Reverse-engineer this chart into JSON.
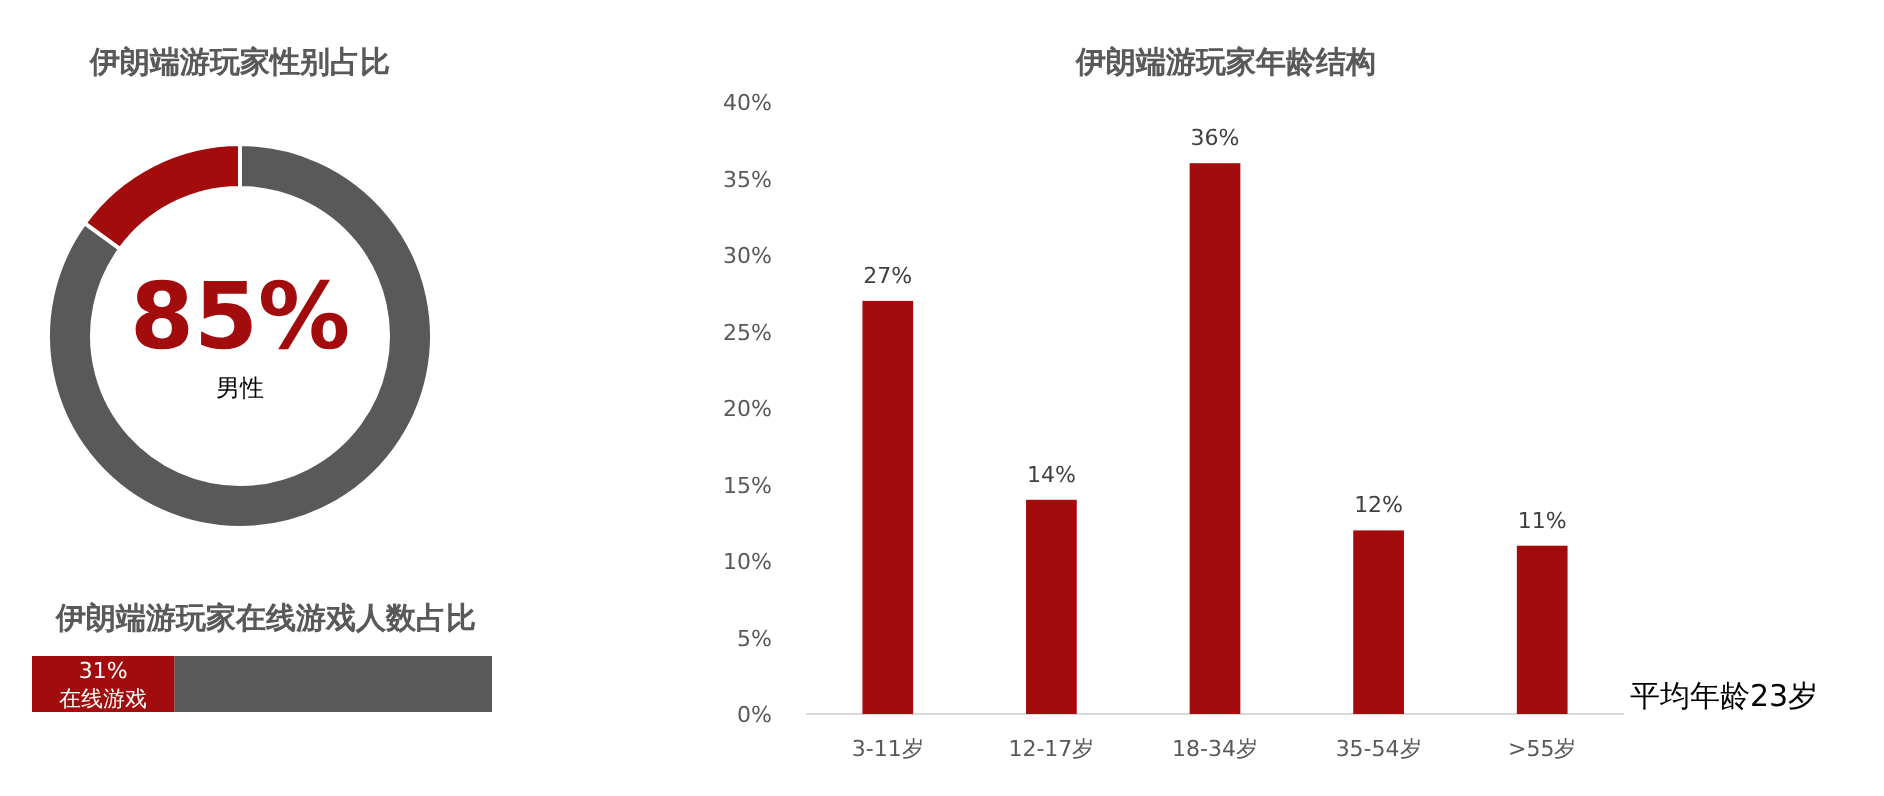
{
  "chart_data": [
    {
      "type": "donut",
      "title": "伊朗端游玩家性别占比",
      "categories": [
        "男性",
        null
      ],
      "values": [
        85,
        15
      ],
      "colors": [
        "#595959",
        "#a20c0c"
      ],
      "value_labels": [
        "85%",
        null
      ]
    },
    {
      "type": "bar",
      "title": "伊朗端游玩家在线游戏人数占比",
      "orientation": "horizontal",
      "stacked": true,
      "xlim": [
        0,
        100
      ],
      "categories": [
        null
      ],
      "series": [
        {
          "name": "在线游戏",
          "color": "#a20c0c",
          "values": [
            31
          ],
          "value_labels": [
            "31%"
          ]
        },
        {
          "color": "#595959",
          "values": [
            69
          ]
        }
      ]
    },
    {
      "type": "bar",
      "title": "伊朗端游玩家年龄结构",
      "categories": [
        "3-11岁",
        "12-17岁",
        "18-34岁",
        "35-54岁",
        ">55岁"
      ],
      "values": [
        27,
        14,
        36,
        12,
        11
      ],
      "color": "#a20c0c",
      "ylim": [
        0,
        40
      ],
      "yticks": [
        {
          "value": 0,
          "label": "0%"
        },
        {
          "value": 5,
          "label": "5%"
        },
        {
          "value": 10,
          "label": "10%"
        },
        {
          "value": 15,
          "label": "15%"
        },
        {
          "value": 20,
          "label": "20%"
        },
        {
          "value": 25,
          "label": "25%"
        },
        {
          "value": 30,
          "label": "30%"
        },
        {
          "value": 35,
          "label": "35%"
        },
        {
          "value": 40,
          "label": "40%"
        }
      ],
      "value_labels": [
        "27%",
        "14%",
        "36%",
        "12%",
        "11%"
      ],
      "annotations": [
        "平均年龄23岁"
      ]
    }
  ]
}
